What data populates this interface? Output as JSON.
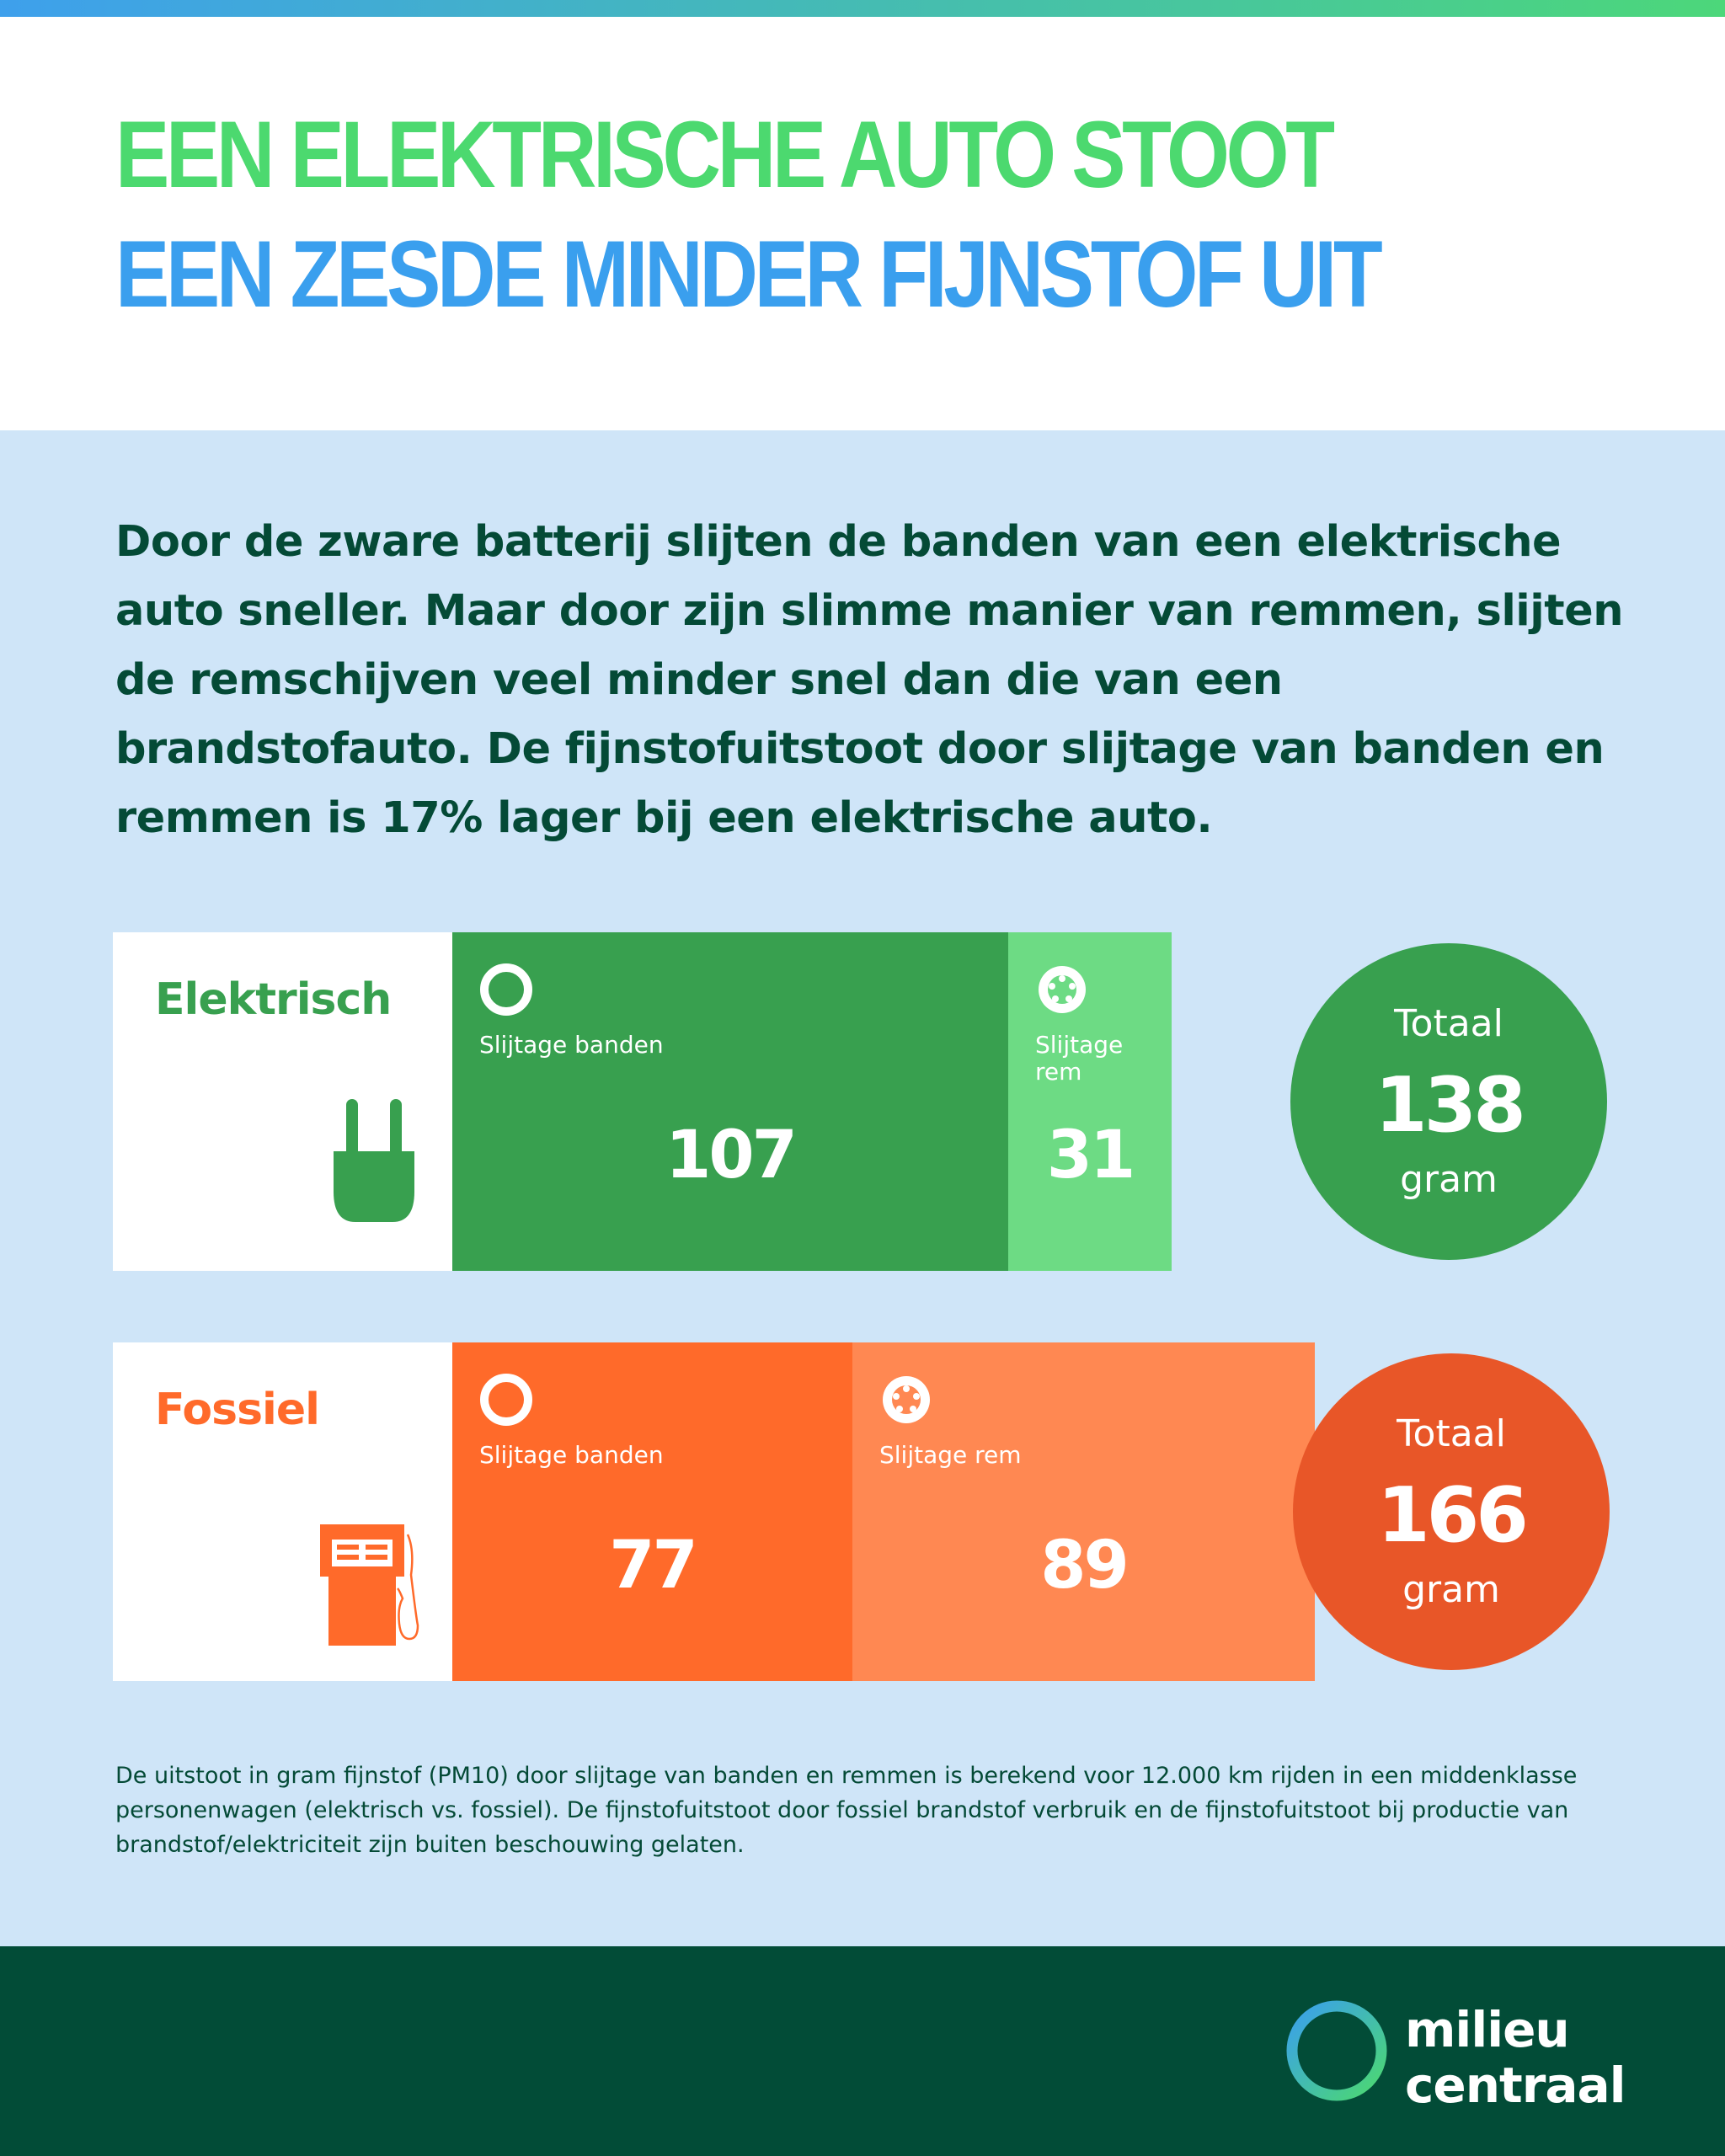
{
  "header": {
    "title_line1": "EEN ELEKTRISCHE AUTO STOOT",
    "title_line2": "EEN ZESDE MINDER FIJNSTOF UIT"
  },
  "intro": "Door de zware batterij slijten de banden van een elektrische auto sneller. Maar door zijn slimme manier van remmen, slijten de remschijven veel minder snel dan die van een brandstofauto. De fijnstofuitstoot door slijtage van banden en remmen is 17% lager bij een elektrische auto.",
  "colors": {
    "title_green": "#4cd96f",
    "title_blue": "#3a9fee",
    "ev_dark": "#38a04f",
    "ev_light": "#6ddb84",
    "ev_total": "#38a04f",
    "fossil_dark": "#ff6a2a",
    "fossil_light": "#ff8852",
    "fossil_total": "#e85628",
    "text_dark": "#044a36",
    "footer": "#024c37"
  },
  "rows": [
    {
      "label": "Elektrisch",
      "icon": "plug-icon",
      "tires_label": "Slijtage banden",
      "tires_value": 107,
      "brakes_label": "Slijtage rem",
      "brakes_value": 31,
      "total_label": "Totaal",
      "total_value": 138,
      "unit": "gram"
    },
    {
      "label": "Fossiel",
      "icon": "fuel-pump-icon",
      "tires_label": "Slijtage banden",
      "tires_value": 77,
      "brakes_label": "Slijtage rem",
      "brakes_value": 89,
      "total_label": "Totaal",
      "total_value": 166,
      "unit": "gram"
    }
  ],
  "footnote": "De uitstoot in gram fijnstof (PM10) door slijtage van banden en remmen is berekend voor 12.000 km rijden in een middenklasse personenwagen (elektrisch vs. fossiel). De fijnstofuitstoot door fossiel brandstof verbruik en de fijnstofuitstoot bij productie van brandstof/elektriciteit zijn buiten beschouwing gelaten.",
  "footer": {
    "logo_line1": "milieu",
    "logo_line2": "centraal"
  }
}
